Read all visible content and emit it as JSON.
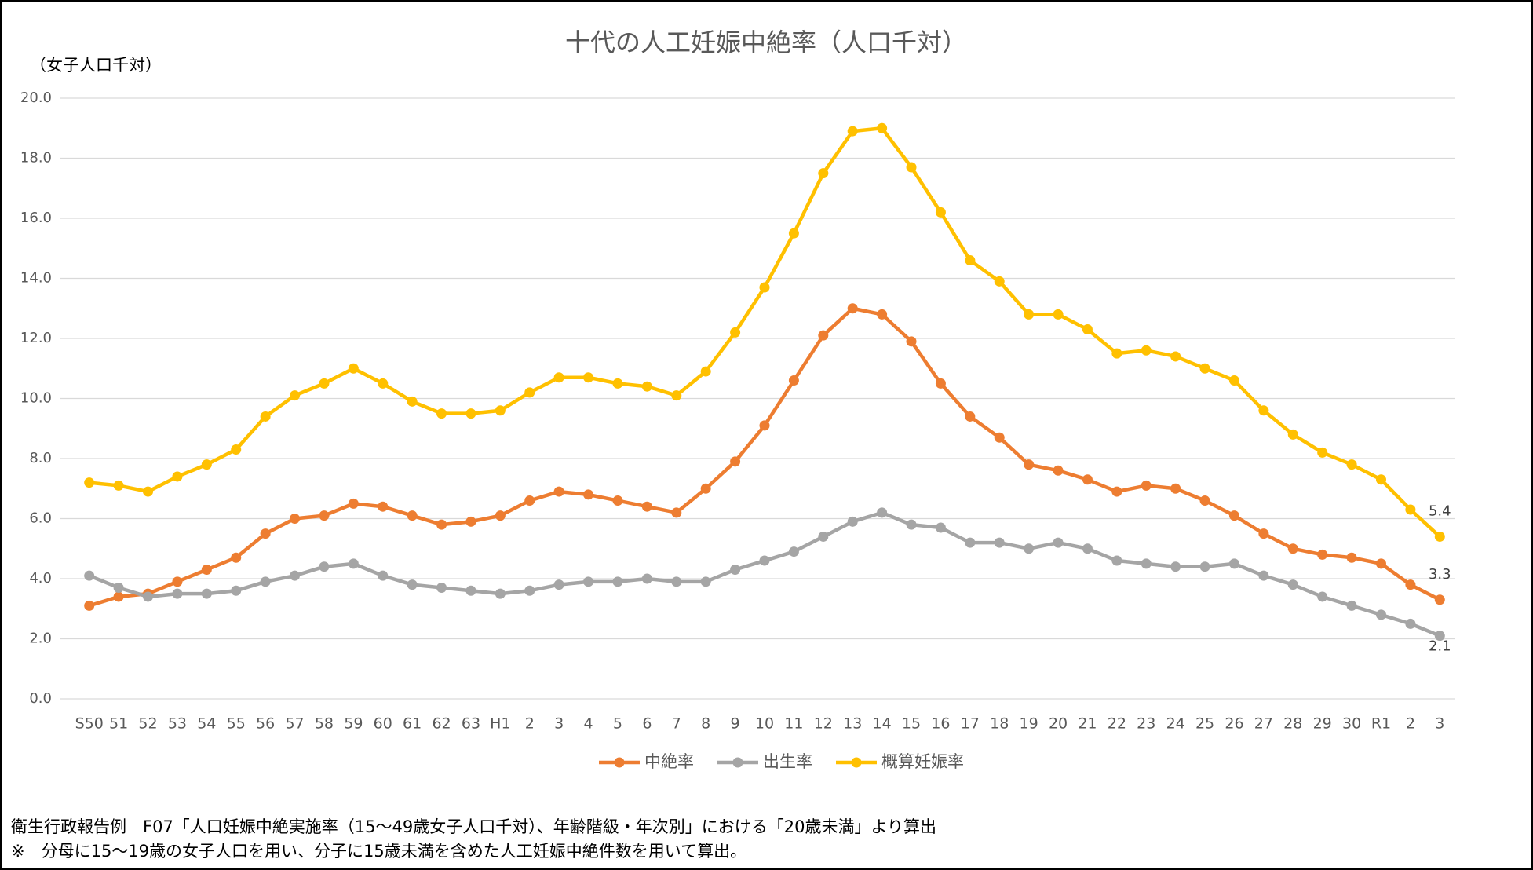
{
  "chart_data": {
    "type": "line",
    "title": "十代の人工妊娠中絶率（人口千対）",
    "y_label": "（女子人口千対）",
    "categories": [
      "S50",
      "51",
      "52",
      "53",
      "54",
      "55",
      "56",
      "57",
      "58",
      "59",
      "60",
      "61",
      "62",
      "63",
      "H1",
      "2",
      "3",
      "4",
      "5",
      "6",
      "7",
      "8",
      "9",
      "10",
      "11",
      "12",
      "13",
      "14",
      "15",
      "16",
      "17",
      "18",
      "19",
      "20",
      "21",
      "22",
      "23",
      "24",
      "25",
      "26",
      "27",
      "28",
      "29",
      "30",
      "R1",
      "2",
      "3"
    ],
    "series": [
      {
        "name": "中絶率",
        "color": "#ed7d31",
        "values": [
          3.1,
          3.4,
          3.5,
          3.9,
          4.3,
          4.7,
          5.5,
          6.0,
          6.1,
          6.5,
          6.4,
          6.1,
          5.8,
          5.9,
          6.1,
          6.6,
          6.9,
          6.8,
          6.6,
          6.4,
          6.2,
          7.0,
          7.9,
          9.1,
          10.6,
          12.1,
          13.0,
          12.8,
          11.9,
          10.5,
          9.4,
          8.7,
          7.8,
          7.6,
          7.3,
          6.9,
          7.1,
          7.0,
          6.6,
          6.1,
          5.5,
          5.0,
          4.8,
          4.7,
          4.5,
          3.8,
          3.3
        ]
      },
      {
        "name": "出生率",
        "color": "#a5a5a5",
        "values": [
          4.1,
          3.7,
          3.4,
          3.5,
          3.5,
          3.6,
          3.9,
          4.1,
          4.4,
          4.5,
          4.1,
          3.8,
          3.7,
          3.6,
          3.5,
          3.6,
          3.8,
          3.9,
          3.9,
          4.0,
          3.9,
          3.9,
          4.3,
          4.6,
          4.9,
          5.4,
          5.9,
          6.2,
          5.8,
          5.7,
          5.2,
          5.2,
          5.0,
          5.2,
          5.0,
          4.6,
          4.5,
          4.4,
          4.4,
          4.5,
          4.1,
          3.8,
          3.4,
          3.1,
          2.8,
          2.5,
          2.1
        ]
      },
      {
        "name": "概算妊娠率",
        "color": "#ffc000",
        "values": [
          7.2,
          7.1,
          6.9,
          7.4,
          7.8,
          8.3,
          9.4,
          10.1,
          10.5,
          11.0,
          10.5,
          9.9,
          9.5,
          9.5,
          9.6,
          10.2,
          10.7,
          10.7,
          10.5,
          10.4,
          10.1,
          10.9,
          12.2,
          13.7,
          15.5,
          17.5,
          18.9,
          19.0,
          17.7,
          16.2,
          14.6,
          13.9,
          12.8,
          12.8,
          12.3,
          11.5,
          11.6,
          11.4,
          11.0,
          10.6,
          9.6,
          8.8,
          8.2,
          7.8,
          7.3,
          6.3,
          5.4
        ]
      }
    ],
    "ylim": [
      0,
      20
    ],
    "yticks": [
      {
        "value": 0,
        "label": "0.0"
      },
      {
        "value": 2,
        "label": "2.0"
      },
      {
        "value": 4,
        "label": "4.0"
      },
      {
        "value": 6,
        "label": "6.0"
      },
      {
        "value": 8,
        "label": "8.0"
      },
      {
        "value": 10,
        "label": "10.0"
      },
      {
        "value": 12,
        "label": "12.0"
      },
      {
        "value": 14,
        "label": "14.0"
      },
      {
        "value": 16,
        "label": "16.0"
      },
      {
        "value": 18,
        "label": "18.0"
      },
      {
        "value": 20,
        "label": "20.0"
      }
    ],
    "grid": true,
    "legend": "bottom",
    "notes": [
      "衛生行政報告例　F07「人口妊娠中絶実施率（15～49歳女子人口千対）、年齢階級・年次別」における「20歳未満」より算出",
      "※　分母に15～19歳の女子人口を用い、分子に15歳未満を含めた人工妊娠中絶件数を用いて算出。"
    ]
  }
}
